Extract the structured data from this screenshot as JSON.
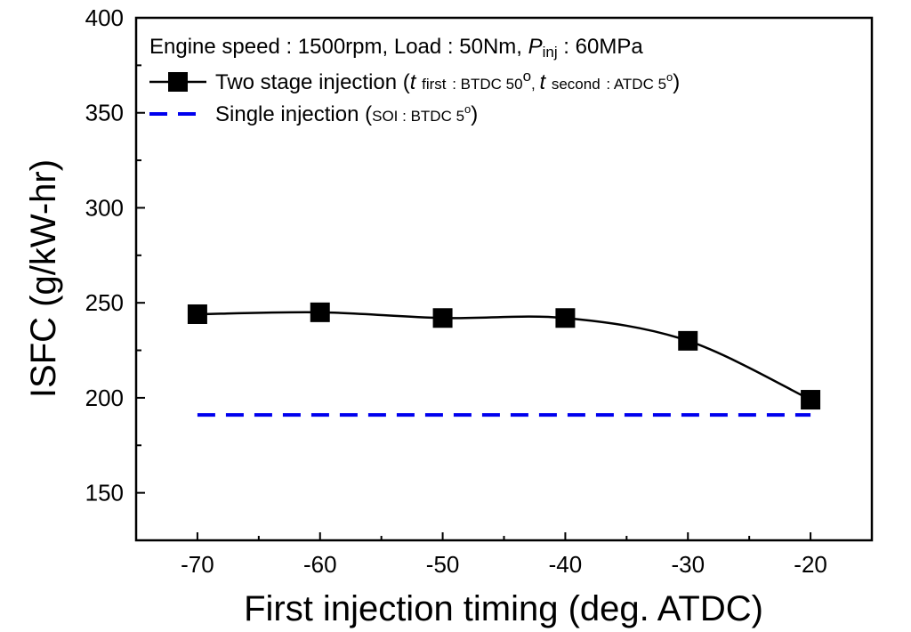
{
  "chart_data": {
    "type": "line",
    "title": "",
    "xlabel": "First injection timing (deg. ATDC)",
    "ylabel": "ISFC (g/kW-hr)",
    "xlim": [
      -75,
      -15
    ],
    "ylim": [
      125,
      400
    ],
    "x_ticks": [
      -70,
      -60,
      -50,
      -40,
      -30,
      -20
    ],
    "x_tick_labels": [
      "-70",
      "-60",
      "-50",
      "-40",
      "-30",
      "-20"
    ],
    "y_ticks": [
      150,
      200,
      250,
      300,
      350,
      400
    ],
    "y_tick_labels": [
      "150",
      "200",
      "250",
      "300",
      "350",
      "400"
    ],
    "legend_position": "top-left",
    "conditions": {
      "text_a": "Engine speed : 1500rpm, Load : 50Nm, ",
      "p_symbol": "P",
      "p_sub": "inj",
      "text_b": " : 60MPa"
    },
    "series": [
      {
        "name": "Two stage injection",
        "legend_detail": {
          "open": "(",
          "t1": "t",
          "t1_sub": "first",
          "t1_val": ": BTDC 50",
          "deg1": "o",
          "sep": ", ",
          "t2": "t",
          "t2_sub": "second",
          "t2_val": ": ATDC 5",
          "deg2": "o",
          "close": ")"
        },
        "style": "solid",
        "marker": "square",
        "color": "#000000",
        "x": [
          -70,
          -60,
          -50,
          -40,
          -30,
          -20
        ],
        "values": [
          244,
          245,
          242,
          242,
          230,
          199
        ]
      },
      {
        "name": "Single injection",
        "legend_detail": {
          "open": "(",
          "t1": "SOI : BTDC 5",
          "deg1": "o",
          "close": ")"
        },
        "style": "dashed",
        "marker": "none",
        "color": "#0000ee",
        "x": [
          -70,
          -20
        ],
        "values": [
          191,
          191
        ]
      }
    ]
  }
}
